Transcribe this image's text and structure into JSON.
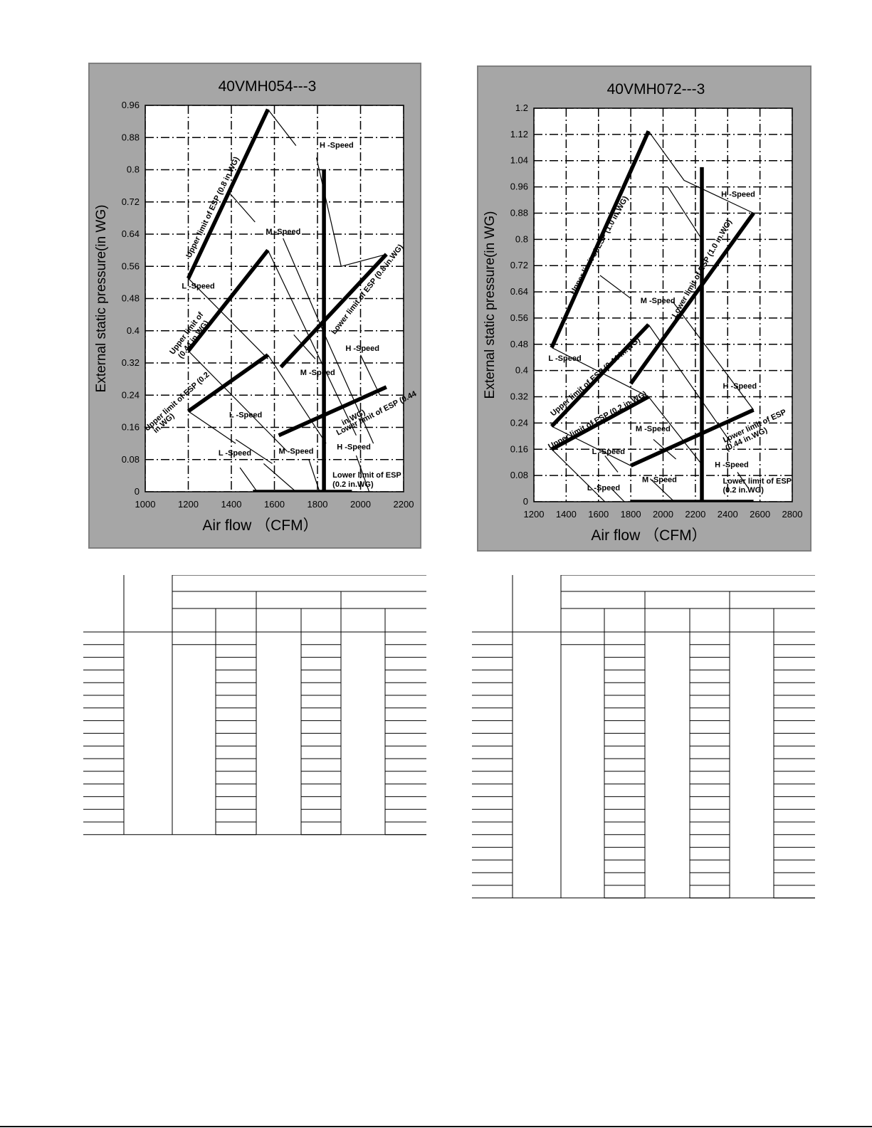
{
  "chart_data": [
    {
      "type": "line",
      "title": "40VMH054---3",
      "xlabel": "Air flow （CFM）",
      "ylabel": "External static pressure(in WG)",
      "xlim": [
        1000,
        2200
      ],
      "ylim": [
        0,
        0.96
      ],
      "x_ticks": [
        "1000",
        "1200",
        "1400",
        "1600",
        "1800",
        "2000",
        "2200"
      ],
      "y_ticks": [
        "0",
        "0.08",
        "0.16",
        "0.24",
        "0.32",
        "0.4",
        "0.48",
        "0.56",
        "0.64",
        "0.72",
        "0.8",
        "0.88",
        "0.96"
      ],
      "grid": true,
      "series": [
        {
          "name": "Upper limit of ESP (0.8 in.WG)",
          "style": "thick",
          "points": [
            [
              1200,
              0.53
            ],
            [
              1570,
              0.95
            ]
          ]
        },
        {
          "name": "Upper limit of ESP (0.44 in.WG)",
          "style": "thick",
          "points": [
            [
              1200,
              0.35
            ],
            [
              1570,
              0.6
            ]
          ]
        },
        {
          "name": "Upper limit of ESP (0.2 in.WG)",
          "style": "thick",
          "points": [
            [
              1200,
              0.2
            ],
            [
              1570,
              0.34
            ]
          ]
        },
        {
          "name": "Lower limit of ESP (0.8 in.WG)",
          "style": "thick",
          "points": [
            [
              1630,
              0.31
            ],
            [
              2120,
              0.59
            ]
          ]
        },
        {
          "name": "Lower limit of ESP (0.44 in.WG)",
          "style": "thick",
          "points": [
            [
              1620,
              0.14
            ],
            [
              2120,
              0.26
            ]
          ]
        },
        {
          "name": "Lower limit of ESP (0.2 in.WG)",
          "style": "thick",
          "points": [
            [
              1500,
              0.0
            ],
            [
              1960,
              0.0
            ]
          ]
        },
        {
          "name": "",
          "style": "thick",
          "points": [
            [
              1830,
              0.0
            ],
            [
              1830,
              0.8
            ]
          ]
        },
        {
          "name": "",
          "style": "thin",
          "points": [
            [
              1570,
              0.95
            ],
            [
              1700,
              0.86
            ]
          ]
        },
        {
          "name": "",
          "style": "thin",
          "points": [
            [
              1795,
              0.83
            ],
            [
              1910,
              0.56
            ],
            [
              2120,
              0.59
            ]
          ]
        },
        {
          "name": "",
          "style": "thin",
          "points": [
            [
              1395,
              0.74
            ],
            [
              1510,
              0.67
            ]
          ]
        },
        {
          "name": "",
          "style": "thin",
          "points": [
            [
              1200,
              0.53
            ],
            [
              1570,
              0.33
            ]
          ]
        },
        {
          "name": "",
          "style": "thin",
          "points": [
            [
              1570,
              0.6
            ],
            [
              1980,
              0.14
            ]
          ]
        },
        {
          "name": "",
          "style": "thin",
          "points": [
            [
              1640,
              0.63
            ],
            [
              1850,
              0.37
            ],
            [
              2060,
              0.12
            ]
          ]
        },
        {
          "name": "",
          "style": "thin",
          "points": [
            [
              1200,
              0.35
            ],
            [
              1660,
              0.1
            ]
          ]
        },
        {
          "name": "",
          "style": "thin",
          "points": [
            [
              1200,
              0.2
            ],
            [
              1420,
              0.12
            ]
          ]
        },
        {
          "name": "",
          "style": "thin",
          "points": [
            [
              1420,
              0.13
            ],
            [
              1590,
              0.07
            ]
          ]
        },
        {
          "name": "",
          "style": "thin",
          "points": [
            [
              1570,
              0.34
            ],
            [
              1840,
              0.12
            ]
          ]
        },
        {
          "name": "",
          "style": "thin",
          "points": [
            [
              1690,
              0.39
            ],
            [
              1790,
              0.33
            ]
          ]
        },
        {
          "name": "",
          "style": "thin",
          "points": [
            [
              1550,
              0.07
            ],
            [
              1700,
              0.0
            ]
          ]
        },
        {
          "name": "",
          "style": "thin",
          "points": [
            [
              1760,
              0.08
            ],
            [
              1810,
              0.0
            ]
          ]
        },
        {
          "name": "",
          "style": "thin",
          "points": [
            [
              1980,
              0.09
            ],
            [
              2040,
              0.0
            ]
          ]
        },
        {
          "name": "",
          "style": "thin",
          "points": [
            [
              1440,
              0.06
            ],
            [
              1520,
              0.0
            ]
          ]
        },
        {
          "name": "",
          "style": "thin",
          "points": [
            [
              2000,
              0.34
            ],
            [
              2090,
              0.24
            ]
          ]
        }
      ],
      "annotations": [
        {
          "text": "H -Speed",
          "x": 1810,
          "y": 0.855,
          "rotate": 0
        },
        {
          "text": "M -Speed",
          "x": 1560,
          "y": 0.64,
          "rotate": 0
        },
        {
          "text": "L -Speed",
          "x": 1170,
          "y": 0.505,
          "rotate": 0
        },
        {
          "text": "H -Speed",
          "x": 1930,
          "y": 0.35,
          "rotate": 0
        },
        {
          "text": "M -Speed",
          "x": 1720,
          "y": 0.29,
          "rotate": 0
        },
        {
          "text": "L -Speed",
          "x": 1390,
          "y": 0.185,
          "rotate": 0
        },
        {
          "text": "H -Speed",
          "x": 1890,
          "y": 0.105,
          "rotate": 0
        },
        {
          "text": "M -Speed",
          "x": 1620,
          "y": 0.095,
          "rotate": 0
        },
        {
          "text": "L -Speed",
          "x": 1340,
          "y": 0.09,
          "rotate": 0
        },
        {
          "text": "Upper limit of ESP (0.8 in.WG)",
          "x": 1210,
          "y": 0.58,
          "rotate": -64
        },
        {
          "text": "Upper limit of",
          "x": 1130,
          "y": 0.34,
          "rotate": -53
        },
        {
          "text": "(0.44 in.WG)",
          "x": 1170,
          "y": 0.33,
          "rotate": -53
        },
        {
          "text": "Upper limit of ESP (0.2",
          "x": 1010,
          "y": 0.15,
          "rotate": -42
        },
        {
          "text": "in.WG)",
          "x": 1050,
          "y": 0.145,
          "rotate": -42
        },
        {
          "text": "Lower limit of ESP (0.8 in.WG)",
          "x": 1880,
          "y": 0.39,
          "rotate": -52
        },
        {
          "text": "Lower limit of ESP (0.44",
          "x": 1895,
          "y": 0.14,
          "rotate": -27
        },
        {
          "text": "in.WG)",
          "x": 1920,
          "y": 0.165,
          "rotate": -27
        },
        {
          "text": "Lower limit of ESP",
          "x": 1870,
          "y": 0.035,
          "rotate": 0
        },
        {
          "text": "(0.2 in.WG)",
          "x": 1870,
          "y": 0.012,
          "rotate": 0
        }
      ]
    },
    {
      "type": "line",
      "title": "40VMH072---3",
      "xlabel": "Air flow （CFM）",
      "ylabel": "External static pressure(in WG)",
      "xlim": [
        1200,
        2800
      ],
      "ylim": [
        0,
        1.2
      ],
      "x_ticks": [
        "1200",
        "1400",
        "1600",
        "1800",
        "2000",
        "2200",
        "2400",
        "2600",
        "2800"
      ],
      "y_ticks": [
        "0",
        "0.08",
        "0.16",
        "0.24",
        "0.32",
        "0.4",
        "0.48",
        "0.56",
        "0.64",
        "0.72",
        "0.8",
        "0.88",
        "0.96",
        "1.04",
        "1.12",
        "1.2"
      ],
      "grid": true,
      "series": [
        {
          "name": "Upper limit of ESP (1.0 in.WG)",
          "style": "thick",
          "points": [
            [
              1310,
              0.47
            ],
            [
              1910,
              1.13
            ]
          ]
        },
        {
          "name": "Upper limit of ESP (0.44 in.WG)",
          "style": "thick",
          "points": [
            [
              1310,
              0.23
            ],
            [
              1910,
              0.54
            ]
          ]
        },
        {
          "name": "Upper limit of ESP (0.2 in.WG)",
          "style": "thick",
          "points": [
            [
              1310,
              0.16
            ],
            [
              1910,
              0.32
            ]
          ]
        },
        {
          "name": "Lower limit of ESP (1.0 in.WG)",
          "style": "thick",
          "points": [
            [
              1800,
              0.36
            ],
            [
              2560,
              0.88
            ]
          ]
        },
        {
          "name": "Lower limit of ESP (0.44 in.WG)",
          "style": "thick",
          "points": [
            [
              1800,
              0.11
            ],
            [
              2560,
              0.28
            ]
          ]
        },
        {
          "name": "Lower limit of ESP (0.2 in.WG)",
          "style": "thick",
          "points": [
            [
              1800,
              0.0
            ],
            [
              2560,
              0.0
            ]
          ]
        },
        {
          "name": "",
          "style": "thick",
          "points": [
            [
              2240,
              0.0
            ],
            [
              2240,
              1.02
            ]
          ]
        },
        {
          "name": "",
          "style": "thin",
          "points": [
            [
              1910,
              1.13
            ],
            [
              2130,
              0.98
            ],
            [
              2560,
              0.88
            ]
          ]
        },
        {
          "name": "",
          "style": "thin",
          "points": [
            [
              2030,
              0.96
            ],
            [
              2240,
              0.8
            ]
          ]
        },
        {
          "name": "",
          "style": "thin",
          "points": [
            [
              1310,
              0.47
            ],
            [
              1910,
              0.32
            ]
          ]
        },
        {
          "name": "",
          "style": "thin",
          "points": [
            [
              1610,
              0.69
            ],
            [
              1800,
              0.62
            ]
          ]
        },
        {
          "name": "",
          "style": "thin",
          "points": [
            [
              1910,
              0.54
            ],
            [
              2420,
              0.18
            ]
          ]
        },
        {
          "name": "",
          "style": "thin",
          "points": [
            [
              2060,
              0.61
            ],
            [
              2560,
              0.28
            ]
          ]
        },
        {
          "name": "",
          "style": "thin",
          "points": [
            [
              1310,
              0.23
            ],
            [
              1800,
              0.11
            ]
          ]
        },
        {
          "name": "",
          "style": "thin",
          "points": [
            [
              1910,
              0.32
            ],
            [
              2230,
              0.12
            ]
          ]
        },
        {
          "name": "",
          "style": "thin",
          "points": [
            [
              1310,
              0.16
            ],
            [
              1640,
              0.0
            ]
          ]
        },
        {
          "name": "",
          "style": "thin",
          "points": [
            [
              1640,
              0.14
            ],
            [
              1720,
              0.09
            ]
          ]
        },
        {
          "name": "",
          "style": "thin",
          "points": [
            [
              1920,
              0.07
            ],
            [
              2070,
              0.0
            ]
          ]
        },
        {
          "name": "",
          "style": "thin",
          "points": [
            [
              1940,
              0.19
            ],
            [
              2080,
              0.13
            ]
          ]
        },
        {
          "name": "",
          "style": "thin",
          "points": [
            [
              1680,
              0.04
            ],
            [
              1760,
              0.0
            ]
          ]
        },
        {
          "name": "",
          "style": "thin",
          "points": [
            [
              2460,
              0.09
            ],
            [
              2530,
              0.04
            ]
          ]
        }
      ],
      "annotations": [
        {
          "text": "H -Speed",
          "x": 2360,
          "y": 0.93,
          "rotate": 0
        },
        {
          "text": "M -Speed",
          "x": 1860,
          "y": 0.605,
          "rotate": 0
        },
        {
          "text": "L -Speed",
          "x": 1290,
          "y": 0.43,
          "rotate": 0
        },
        {
          "text": "H -Speed",
          "x": 2370,
          "y": 0.345,
          "rotate": 0
        },
        {
          "text": "M -Speed",
          "x": 1830,
          "y": 0.215,
          "rotate": 0
        },
        {
          "text": "L -Speed",
          "x": 1560,
          "y": 0.145,
          "rotate": 0
        },
        {
          "text": "H -Speed",
          "x": 2320,
          "y": 0.105,
          "rotate": 0
        },
        {
          "text": "M -Speed",
          "x": 1870,
          "y": 0.06,
          "rotate": 0
        },
        {
          "text": "L -Speed",
          "x": 1530,
          "y": 0.035,
          "rotate": 0
        },
        {
          "text": "Upper limit of ESP (1.0 in.WG)",
          "x": 1450,
          "y": 0.63,
          "rotate": -61
        },
        {
          "text": "Upper limit of ESP (0.44 in.WG)",
          "x": 1320,
          "y": 0.26,
          "rotate": -41
        },
        {
          "text": "Upper limit of ESP (0.2 in.WG)",
          "x": 1300,
          "y": 0.16,
          "rotate": -29
        },
        {
          "text": "Lower limit of ESP (1.0 in.WG)",
          "x": 2080,
          "y": 0.56,
          "rotate": -60
        },
        {
          "text": "Lower limit of ESP",
          "x": 2380,
          "y": 0.18,
          "rotate": -25
        },
        {
          "text": "(0.44 in.WG)",
          "x": 2395,
          "y": 0.155,
          "rotate": -25
        },
        {
          "text": "Lower limit of ESP",
          "x": 2370,
          "y": 0.055,
          "rotate": 0
        },
        {
          "text": "(0.2 in.WG)",
          "x": 2370,
          "y": 0.028,
          "rotate": 0
        }
      ]
    }
  ]
}
